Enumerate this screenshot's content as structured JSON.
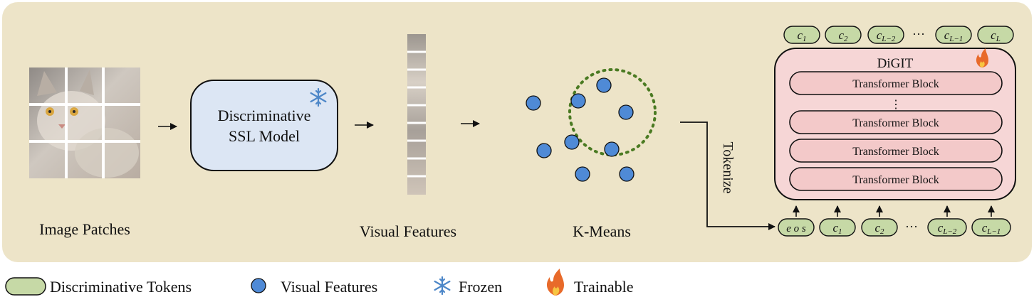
{
  "labels": {
    "image_patches": "Image Patches",
    "ssl_model_line1": "Discriminative",
    "ssl_model_line2": "SSL Model",
    "visual_features": "Visual Features",
    "kmeans": "K-Means",
    "tokenize": "Tokenize",
    "digit": "DiGIT",
    "transformer_block": "Transformer Block",
    "ellipsis": "⋮",
    "seq_ellipsis": "···"
  },
  "output_tokens": [
    {
      "base": "c",
      "sub": "1"
    },
    {
      "base": "c",
      "sub": "2"
    },
    {
      "base": "c",
      "sub": "L−2"
    },
    {
      "base": "c",
      "sub": "L−1"
    },
    {
      "base": "c",
      "sub": "L"
    }
  ],
  "input_tokens": [
    {
      "base": "e o s",
      "sub": ""
    },
    {
      "base": "c",
      "sub": "1"
    },
    {
      "base": "c",
      "sub": "2"
    },
    {
      "base": "c",
      "sub": "L−2"
    },
    {
      "base": "c",
      "sub": "L−1"
    }
  ],
  "legend": [
    {
      "type": "token",
      "label": "Discriminative Tokens"
    },
    {
      "type": "dot",
      "label": "Visual Features"
    },
    {
      "type": "snowflake",
      "label": "Frozen"
    },
    {
      "type": "flame",
      "label": "Trainable"
    }
  ],
  "colors": {
    "panel_bg": "#ede4c8",
    "ssl_fill": "#dce6f4",
    "dot_fill": "#4f8ad6",
    "token_fill": "#c6d9a6",
    "digit_fill": "#f6d6d6",
    "block_fill": "#f3c9c9",
    "dashed_circle": "#4a7a22",
    "snowflake": "#4d87c8",
    "flame": "#e86a2a"
  }
}
